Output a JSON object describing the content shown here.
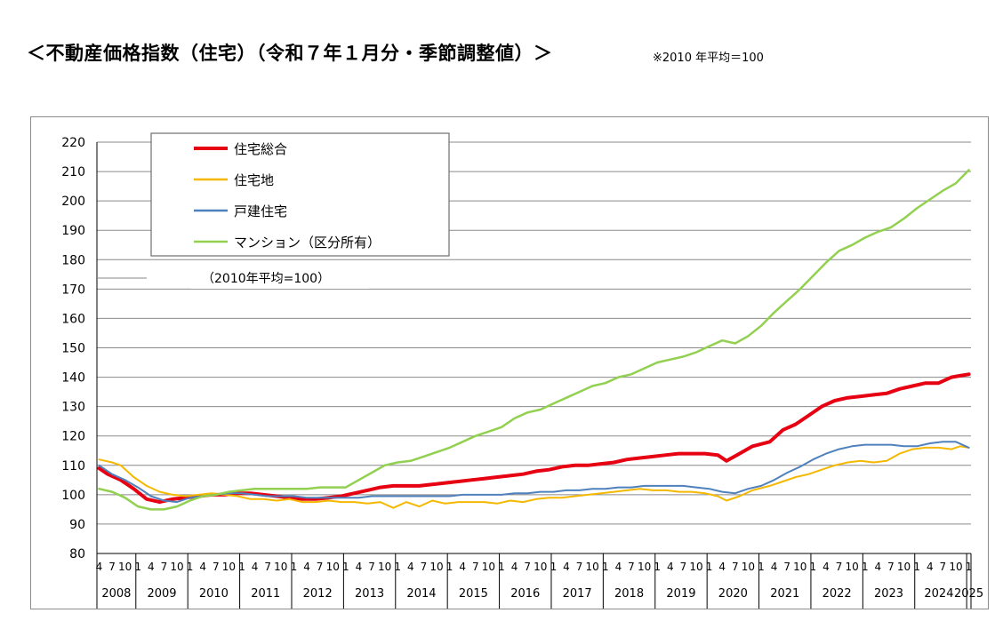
{
  "header": {
    "title": "＜不動産価格指数（住宅）（令和７年１月分・季節調整値）＞",
    "note": "※2010 年平均＝100"
  },
  "chart_data": {
    "type": "line",
    "annotation": "（2010年平均=100）",
    "y_axis": {
      "min": 80,
      "max": 220,
      "step": 10,
      "ticks": [
        "80",
        "90",
        "100",
        "110",
        "120",
        "130",
        "140",
        "150",
        "160",
        "170",
        "180",
        "190",
        "200",
        "210",
        "220"
      ],
      "grid": true
    },
    "x_axis": {
      "start": "2008-04",
      "end": "2025-01",
      "month_tick_labels": [
        "1",
        "4",
        "7",
        "10"
      ],
      "year_labels": [
        "2008",
        "2009",
        "2010",
        "2011",
        "2012",
        "2013",
        "2014",
        "2015",
        "2016",
        "2017",
        "2018",
        "2019",
        "2020",
        "2021",
        "2022",
        "2023",
        "2024",
        "2025"
      ]
    },
    "legend": {
      "position": "top-left"
    },
    "series": [
      {
        "name": "住宅総合",
        "color": "#e60012",
        "width": 4,
        "points": [
          [
            "2008-04",
            109
          ],
          [
            "2008-06",
            107
          ],
          [
            "2008-09",
            105
          ],
          [
            "2008-12",
            102
          ],
          [
            "2009-03",
            98.5
          ],
          [
            "2009-06",
            97.5
          ],
          [
            "2009-09",
            98.5
          ],
          [
            "2009-12",
            99
          ],
          [
            "2010-03",
            99.5
          ],
          [
            "2010-06",
            100
          ],
          [
            "2010-09",
            100
          ],
          [
            "2010-12",
            100.5
          ],
          [
            "2011-03",
            100.5
          ],
          [
            "2011-06",
            100
          ],
          [
            "2011-09",
            99.5
          ],
          [
            "2011-12",
            99
          ],
          [
            "2012-03",
            98.5
          ],
          [
            "2012-06",
            98.5
          ],
          [
            "2012-09",
            99
          ],
          [
            "2012-12",
            99.5
          ],
          [
            "2013-03",
            100.5
          ],
          [
            "2013-06",
            101.5
          ],
          [
            "2013-09",
            102.5
          ],
          [
            "2013-12",
            103
          ],
          [
            "2014-03",
            103
          ],
          [
            "2014-06",
            103
          ],
          [
            "2014-09",
            103.5
          ],
          [
            "2014-12",
            104
          ],
          [
            "2015-03",
            104.5
          ],
          [
            "2015-06",
            105
          ],
          [
            "2015-09",
            105.5
          ],
          [
            "2015-12",
            106
          ],
          [
            "2016-03",
            106.5
          ],
          [
            "2016-06",
            107
          ],
          [
            "2016-09",
            108
          ],
          [
            "2016-12",
            108.5
          ],
          [
            "2017-03",
            109.5
          ],
          [
            "2017-06",
            110
          ],
          [
            "2017-09",
            110
          ],
          [
            "2017-12",
            110.5
          ],
          [
            "2018-03",
            111
          ],
          [
            "2018-06",
            112
          ],
          [
            "2018-09",
            112.5
          ],
          [
            "2018-12",
            113
          ],
          [
            "2019-03",
            113.5
          ],
          [
            "2019-06",
            114
          ],
          [
            "2019-09",
            114
          ],
          [
            "2019-12",
            114
          ],
          [
            "2020-03",
            113.5
          ],
          [
            "2020-05",
            111.5
          ],
          [
            "2020-08",
            114
          ],
          [
            "2020-11",
            116.5
          ],
          [
            "2021-03",
            118
          ],
          [
            "2021-06",
            122
          ],
          [
            "2021-09",
            124
          ],
          [
            "2021-12",
            127
          ],
          [
            "2022-03",
            130
          ],
          [
            "2022-06",
            132
          ],
          [
            "2022-09",
            133
          ],
          [
            "2022-12",
            133.5
          ],
          [
            "2023-03",
            134
          ],
          [
            "2023-06",
            134.5
          ],
          [
            "2023-09",
            136
          ],
          [
            "2023-12",
            137
          ],
          [
            "2024-03",
            138
          ],
          [
            "2024-06",
            138
          ],
          [
            "2024-09",
            140
          ],
          [
            "2024-11",
            140.5
          ],
          [
            "2025-01",
            141
          ]
        ]
      },
      {
        "name": "住宅地",
        "color": "#f5b800",
        "width": 2,
        "points": [
          [
            "2008-04",
            112
          ],
          [
            "2008-07",
            111
          ],
          [
            "2008-09",
            110
          ],
          [
            "2008-12",
            106
          ],
          [
            "2009-03",
            103
          ],
          [
            "2009-06",
            101
          ],
          [
            "2009-09",
            100
          ],
          [
            "2009-12",
            99.5
          ],
          [
            "2010-03",
            100
          ],
          [
            "2010-06",
            100.5
          ],
          [
            "2010-09",
            100
          ],
          [
            "2010-12",
            99.5
          ],
          [
            "2011-03",
            98.5
          ],
          [
            "2011-06",
            98.5
          ],
          [
            "2011-09",
            98
          ],
          [
            "2011-12",
            98.5
          ],
          [
            "2012-03",
            97.5
          ],
          [
            "2012-06",
            97.5
          ],
          [
            "2012-09",
            98
          ],
          [
            "2012-12",
            97.5
          ],
          [
            "2013-03",
            97.5
          ],
          [
            "2013-06",
            97
          ],
          [
            "2013-09",
            97.5
          ],
          [
            "2013-12",
            95.5
          ],
          [
            "2014-03",
            97.5
          ],
          [
            "2014-06",
            96
          ],
          [
            "2014-09",
            98
          ],
          [
            "2014-12",
            97
          ],
          [
            "2015-03",
            97.5
          ],
          [
            "2015-06",
            97.5
          ],
          [
            "2015-09",
            97.5
          ],
          [
            "2015-12",
            97
          ],
          [
            "2016-03",
            98
          ],
          [
            "2016-06",
            97.5
          ],
          [
            "2016-09",
            98.5
          ],
          [
            "2016-12",
            99
          ],
          [
            "2017-03",
            99
          ],
          [
            "2017-06",
            99.5
          ],
          [
            "2017-09",
            100
          ],
          [
            "2017-12",
            100.5
          ],
          [
            "2018-03",
            101
          ],
          [
            "2018-06",
            101.5
          ],
          [
            "2018-09",
            102
          ],
          [
            "2018-12",
            101.5
          ],
          [
            "2019-03",
            101.5
          ],
          [
            "2019-06",
            101
          ],
          [
            "2019-09",
            101
          ],
          [
            "2019-12",
            100.5
          ],
          [
            "2020-03",
            99.5
          ],
          [
            "2020-05",
            98
          ],
          [
            "2020-08",
            99.5
          ],
          [
            "2020-11",
            101.5
          ],
          [
            "2021-03",
            103
          ],
          [
            "2021-06",
            104.5
          ],
          [
            "2021-09",
            106
          ],
          [
            "2021-12",
            107
          ],
          [
            "2022-03",
            108.5
          ],
          [
            "2022-06",
            110
          ],
          [
            "2022-09",
            111
          ],
          [
            "2022-12",
            111.5
          ],
          [
            "2023-03",
            111
          ],
          [
            "2023-06",
            111.5
          ],
          [
            "2023-09",
            114
          ],
          [
            "2023-12",
            115.5
          ],
          [
            "2024-03",
            116
          ],
          [
            "2024-06",
            116
          ],
          [
            "2024-09",
            115.5
          ],
          [
            "2024-11",
            116.5
          ],
          [
            "2025-01",
            116
          ]
        ]
      },
      {
        "name": "戸建住宅",
        "color": "#4f81bd",
        "width": 2,
        "points": [
          [
            "2008-04",
            110
          ],
          [
            "2008-07",
            107
          ],
          [
            "2008-10",
            105
          ],
          [
            "2009-01",
            102.5
          ],
          [
            "2009-04",
            99.5
          ],
          [
            "2009-07",
            98
          ],
          [
            "2009-10",
            97.5
          ],
          [
            "2010-01",
            99
          ],
          [
            "2010-04",
            99.5
          ],
          [
            "2010-07",
            100
          ],
          [
            "2010-10",
            100.5
          ],
          [
            "2011-01",
            100.5
          ],
          [
            "2011-04",
            100
          ],
          [
            "2011-07",
            99.5
          ],
          [
            "2011-10",
            99.5
          ],
          [
            "2012-01",
            99.5
          ],
          [
            "2012-04",
            99
          ],
          [
            "2012-07",
            99
          ],
          [
            "2012-10",
            99
          ],
          [
            "2013-01",
            99
          ],
          [
            "2013-04",
            99
          ],
          [
            "2013-07",
            99.5
          ],
          [
            "2013-10",
            99.5
          ],
          [
            "2014-01",
            99.5
          ],
          [
            "2014-04",
            99.5
          ],
          [
            "2014-07",
            99.5
          ],
          [
            "2014-10",
            99.5
          ],
          [
            "2015-01",
            99.5
          ],
          [
            "2015-04",
            100
          ],
          [
            "2015-07",
            100
          ],
          [
            "2015-10",
            100
          ],
          [
            "2016-01",
            100
          ],
          [
            "2016-04",
            100.5
          ],
          [
            "2016-07",
            100.5
          ],
          [
            "2016-10",
            101
          ],
          [
            "2017-01",
            101
          ],
          [
            "2017-04",
            101.5
          ],
          [
            "2017-07",
            101.5
          ],
          [
            "2017-10",
            102
          ],
          [
            "2018-01",
            102
          ],
          [
            "2018-04",
            102.5
          ],
          [
            "2018-07",
            102.5
          ],
          [
            "2018-10",
            103
          ],
          [
            "2019-01",
            103
          ],
          [
            "2019-04",
            103
          ],
          [
            "2019-07",
            103
          ],
          [
            "2019-10",
            102.5
          ],
          [
            "2020-01",
            102
          ],
          [
            "2020-04",
            101
          ],
          [
            "2020-07",
            100.5
          ],
          [
            "2020-10",
            102
          ],
          [
            "2021-01",
            103
          ],
          [
            "2021-04",
            105
          ],
          [
            "2021-07",
            107.5
          ],
          [
            "2021-10",
            109.5
          ],
          [
            "2022-01",
            112
          ],
          [
            "2022-04",
            114
          ],
          [
            "2022-07",
            115.5
          ],
          [
            "2022-10",
            116.5
          ],
          [
            "2023-01",
            117
          ],
          [
            "2023-04",
            117
          ],
          [
            "2023-07",
            117
          ],
          [
            "2023-10",
            116.5
          ],
          [
            "2024-01",
            116.5
          ],
          [
            "2024-04",
            117.5
          ],
          [
            "2024-07",
            118
          ],
          [
            "2024-10",
            118
          ],
          [
            "2025-01",
            116
          ]
        ]
      },
      {
        "name": "マンション（区分所有）",
        "color": "#92d050",
        "width": 2.5,
        "points": [
          [
            "2008-04",
            102
          ],
          [
            "2008-07",
            101
          ],
          [
            "2008-10",
            99
          ],
          [
            "2009-01",
            96
          ],
          [
            "2009-04",
            95
          ],
          [
            "2009-07",
            95
          ],
          [
            "2009-10",
            96
          ],
          [
            "2010-01",
            98
          ],
          [
            "2010-04",
            99.5
          ],
          [
            "2010-07",
            100
          ],
          [
            "2010-10",
            101
          ],
          [
            "2011-01",
            101.5
          ],
          [
            "2011-04",
            102
          ],
          [
            "2011-07",
            102
          ],
          [
            "2011-10",
            102
          ],
          [
            "2012-01",
            102
          ],
          [
            "2012-04",
            102
          ],
          [
            "2012-07",
            102.5
          ],
          [
            "2012-10",
            102.5
          ],
          [
            "2013-01",
            102.5
          ],
          [
            "2013-04",
            105
          ],
          [
            "2013-07",
            107.5
          ],
          [
            "2013-10",
            110
          ],
          [
            "2014-01",
            111
          ],
          [
            "2014-04",
            111.5
          ],
          [
            "2014-07",
            113
          ],
          [
            "2014-10",
            114.5
          ],
          [
            "2015-01",
            116
          ],
          [
            "2015-04",
            118
          ],
          [
            "2015-07",
            120
          ],
          [
            "2015-10",
            121.5
          ],
          [
            "2016-01",
            123
          ],
          [
            "2016-04",
            126
          ],
          [
            "2016-07",
            128
          ],
          [
            "2016-10",
            129
          ],
          [
            "2017-01",
            131
          ],
          [
            "2017-04",
            133
          ],
          [
            "2017-07",
            135
          ],
          [
            "2017-10",
            137
          ],
          [
            "2018-01",
            138
          ],
          [
            "2018-04",
            140
          ],
          [
            "2018-07",
            141
          ],
          [
            "2018-10",
            143
          ],
          [
            "2019-01",
            145
          ],
          [
            "2019-04",
            146
          ],
          [
            "2019-07",
            147
          ],
          [
            "2019-10",
            148.5
          ],
          [
            "2020-01",
            150.5
          ],
          [
            "2020-04",
            152.5
          ],
          [
            "2020-07",
            151.5
          ],
          [
            "2020-10",
            154
          ],
          [
            "2021-01",
            157.5
          ],
          [
            "2021-04",
            162
          ],
          [
            "2021-07",
            166
          ],
          [
            "2021-10",
            170
          ],
          [
            "2022-01",
            174.5
          ],
          [
            "2022-04",
            179
          ],
          [
            "2022-07",
            183
          ],
          [
            "2022-10",
            185
          ],
          [
            "2023-01",
            187.5
          ],
          [
            "2023-04",
            189.5
          ],
          [
            "2023-07",
            191
          ],
          [
            "2023-10",
            194
          ],
          [
            "2024-01",
            197.5
          ],
          [
            "2024-04",
            200.5
          ],
          [
            "2024-07",
            203.5
          ],
          [
            "2024-10",
            206
          ],
          [
            "2025-01",
            210.5
          ]
        ]
      }
    ]
  }
}
